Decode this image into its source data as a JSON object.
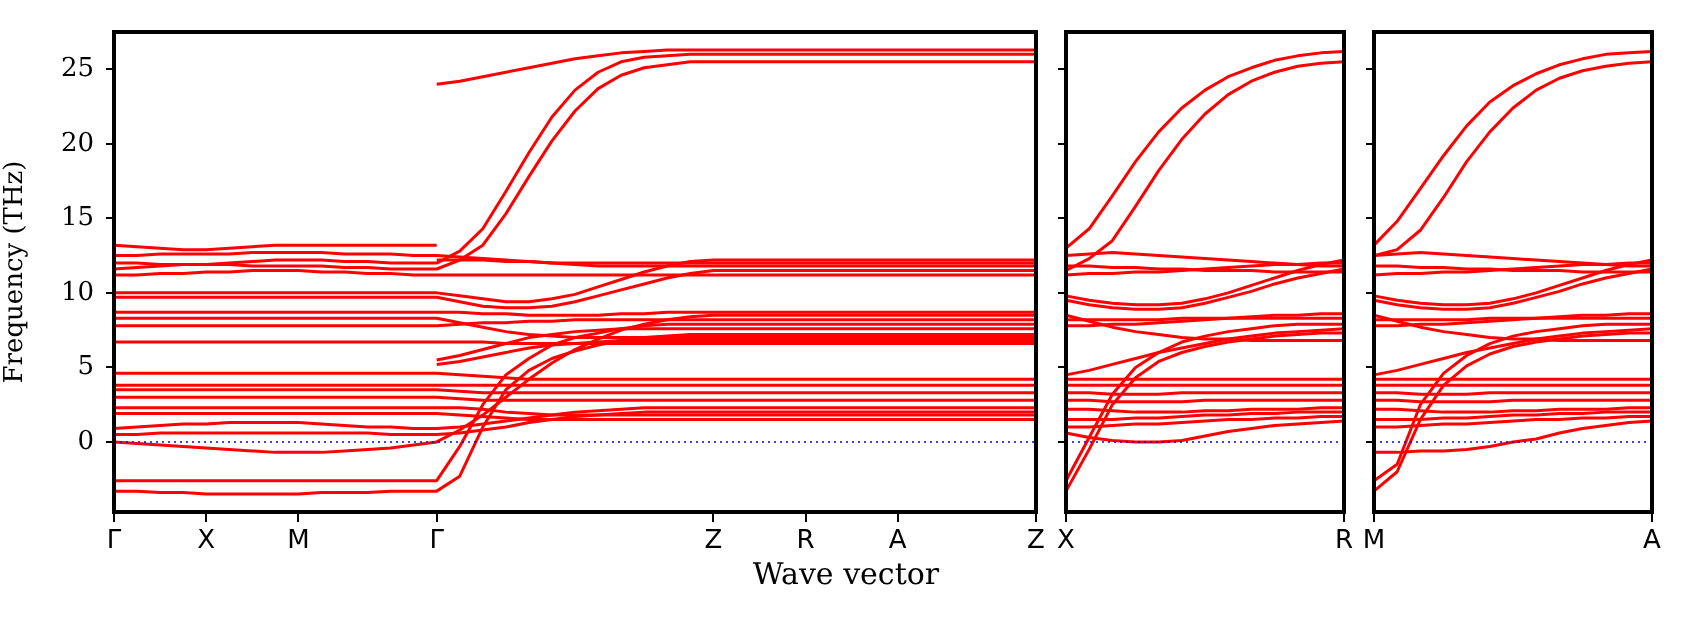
{
  "chart_data": [
    {
      "type": "line",
      "ylabel": "Frequency (THz)",
      "xlabel": "Wave vector",
      "marker": "none",
      "line_style": "solid",
      "grid": false,
      "legend": false,
      "categories": [
        "Γ",
        null,
        null,
        null,
        "X",
        null,
        null,
        null,
        "M",
        null,
        null,
        null,
        null,
        null,
        "Γ",
        null,
        null,
        null,
        null,
        null,
        null,
        null,
        null,
        null,
        null,
        null,
        "Z",
        null,
        null,
        null,
        "R",
        null,
        null,
        null,
        "A",
        null,
        null,
        null,
        null,
        null,
        "Z"
      ],
      "ylim": [
        -4.7,
        27.5
      ],
      "yticks": [
        0,
        5,
        10,
        15,
        20,
        25
      ],
      "ref_lines": [
        {
          "axis": "y",
          "value": 0,
          "color": "#0000ff",
          "line_style": "dotted"
        }
      ],
      "series": [
        {
          "color": "#ff0000",
          "values": [
            -3.3,
            -3.3,
            -3.4,
            -3.4,
            -3.5,
            -3.5,
            -3.5,
            -3.5,
            -3.5,
            -3.4,
            -3.4,
            -3.4,
            -3.3,
            -3.3,
            -3.3,
            -2.3,
            1,
            3.5,
            4.8,
            5.6,
            6.1,
            6.5,
            6.8,
            7.0,
            7.1,
            7.2,
            7.2,
            7.2,
            7.2,
            7.2,
            7.2,
            7.2,
            7.2,
            7.2,
            7.2,
            7.2,
            7.2,
            7.2,
            7.2,
            7.2,
            7.2
          ]
        },
        {
          "color": "#ff0000",
          "values": [
            -2.6,
            -2.6,
            -2.6,
            -2.6,
            -2.6,
            -2.6,
            -2.6,
            -2.6,
            -2.6,
            -2.6,
            -2.6,
            -2.6,
            -2.6,
            -2.6,
            -2.6,
            -0.3,
            2.5,
            4.5,
            5.6,
            6.5,
            7.0,
            7.3,
            7.6,
            7.8,
            7.9,
            7.9,
            7.9,
            7.9,
            7.9,
            7.9,
            7.9,
            7.9,
            7.9,
            7.9,
            7.9,
            7.9,
            7.9,
            7.9,
            7.9,
            7.9,
            7.9
          ]
        },
        {
          "color": "#ff0000",
          "values": [
            0,
            -0.1,
            -0.2,
            -0.3,
            -0.4,
            -0.5,
            -0.6,
            -0.7,
            -0.7,
            -0.7,
            -0.6,
            -0.5,
            -0.4,
            -0.2,
            0,
            0.8,
            1.8,
            3.0,
            4.2,
            5.3,
            6.2,
            6.9,
            7.5,
            7.9,
            8.2,
            8.4,
            8.5,
            8.5,
            8.5,
            8.5,
            8.5,
            8.5,
            8.5,
            8.5,
            8.5,
            8.5,
            8.5,
            8.5,
            8.5,
            8.5,
            8.5
          ]
        },
        {
          "color": "#ff0000",
          "values": [
            0.5,
            0.5,
            0.6,
            0.6,
            0.6,
            0.6,
            0.6,
            0.6,
            0.6,
            0.6,
            0.6,
            0.6,
            0.5,
            0.5,
            0.5,
            0.6,
            0.8,
            1.0,
            1.3,
            1.5,
            1.7,
            1.8,
            1.9,
            2.0,
            2.0,
            2.0,
            2.0,
            2.0,
            2.0,
            2.0,
            2.0,
            2.0,
            2.0,
            2.0,
            2.0,
            2.0,
            2.0,
            2.0,
            2.0,
            2.0,
            2.0
          ]
        },
        {
          "color": "#ff0000",
          "values": [
            0.9,
            1.0,
            1.1,
            1.2,
            1.2,
            1.3,
            1.3,
            1.3,
            1.3,
            1.2,
            1.1,
            1.0,
            1.0,
            0.9,
            0.9,
            1.0,
            1.2,
            1.4,
            1.6,
            1.8,
            2.0,
            2.1,
            2.2,
            2.3,
            2.3,
            2.3,
            2.3,
            2.3,
            2.3,
            2.3,
            2.3,
            2.3,
            2.3,
            2.3,
            2.3,
            2.3,
            2.3,
            2.3,
            2.3,
            2.3,
            2.3
          ]
        },
        {
          "color": "#ff0000",
          "values": [
            1.9,
            1.9,
            1.9,
            1.9,
            1.9,
            1.9,
            1.9,
            1.9,
            1.9,
            1.9,
            1.9,
            1.9,
            1.9,
            1.9,
            1.9,
            1.8,
            1.7,
            1.6,
            1.5,
            1.5,
            1.5,
            1.5,
            1.5,
            1.5,
            1.5,
            1.5,
            1.5,
            1.5,
            1.5,
            1.5,
            1.5,
            1.5,
            1.5,
            1.5,
            1.5,
            1.5,
            1.5,
            1.5,
            1.5,
            1.5,
            1.5
          ]
        },
        {
          "color": "#ff0000",
          "values": [
            2.3,
            2.3,
            2.3,
            2.3,
            2.3,
            2.3,
            2.3,
            2.3,
            2.3,
            2.3,
            2.3,
            2.3,
            2.3,
            2.3,
            2.3,
            2.3,
            2.2,
            2.0,
            1.9,
            1.8,
            1.8,
            1.8,
            1.8,
            1.8,
            1.8,
            1.8,
            1.8,
            1.8,
            1.8,
            1.8,
            1.8,
            1.8,
            1.8,
            1.8,
            1.8,
            1.8,
            1.8,
            1.8,
            1.8,
            1.8,
            1.8
          ]
        },
        {
          "color": "#ff0000",
          "values": [
            3.0,
            3.0,
            3.0,
            3.0,
            3.0,
            3.0,
            3.0,
            3.0,
            3.0,
            3.0,
            3.0,
            3.0,
            3.0,
            3.0,
            3.0,
            2.9,
            2.8,
            2.8,
            2.8,
            2.8,
            2.8,
            2.8,
            2.8,
            2.8,
            2.8,
            2.8,
            2.8,
            2.8,
            2.8,
            2.8,
            2.8,
            2.8,
            2.8,
            2.8,
            2.8,
            2.8,
            2.8,
            2.8,
            2.8,
            2.8,
            2.8
          ]
        },
        {
          "color": "#ff0000",
          "values": [
            3.5,
            3.5,
            3.5,
            3.5,
            3.5,
            3.5,
            3.5,
            3.5,
            3.5,
            3.5,
            3.5,
            3.5,
            3.5,
            3.5,
            3.5,
            3.4,
            3.3,
            3.3,
            3.3,
            3.3,
            3.3,
            3.3,
            3.3,
            3.3,
            3.3,
            3.3,
            3.3,
            3.3,
            3.3,
            3.3,
            3.3,
            3.3,
            3.3,
            3.3,
            3.3,
            3.3,
            3.3,
            3.3,
            3.3,
            3.3,
            3.3
          ]
        },
        {
          "color": "#ff0000",
          "values": [
            3.8,
            3.8,
            3.8,
            3.8,
            3.8,
            3.8,
            3.8,
            3.8,
            3.8,
            3.8,
            3.8,
            3.8,
            3.8,
            3.8,
            3.8,
            3.8,
            3.8,
            3.8,
            3.8,
            3.8,
            3.8,
            3.8,
            3.8,
            3.8,
            3.8,
            3.8,
            3.8,
            3.8,
            3.8,
            3.8,
            3.8,
            3.8,
            3.8,
            3.8,
            3.8,
            3.8,
            3.8,
            3.8,
            3.8,
            3.8,
            3.8
          ]
        },
        {
          "color": "#ff0000",
          "values": [
            4.6,
            4.6,
            4.6,
            4.6,
            4.6,
            4.6,
            4.6,
            4.6,
            4.6,
            4.6,
            4.6,
            4.6,
            4.6,
            4.6,
            4.6,
            4.5,
            4.4,
            4.3,
            4.2,
            4.2,
            4.2,
            4.2,
            4.2,
            4.2,
            4.2,
            4.2,
            4.2,
            4.2,
            4.2,
            4.2,
            4.2,
            4.2,
            4.2,
            4.2,
            4.2,
            4.2,
            4.2,
            4.2,
            4.2,
            4.2,
            4.2
          ]
        },
        {
          "color": "#ff0000",
          "values": [
            6.7,
            6.7,
            6.7,
            6.7,
            6.7,
            6.7,
            6.7,
            6.7,
            6.7,
            6.7,
            6.7,
            6.7,
            6.7,
            6.7,
            6.7,
            6.7,
            6.7,
            6.6,
            6.6,
            6.6,
            6.6,
            6.6,
            6.6,
            6.6,
            6.6,
            6.6,
            6.6,
            6.6,
            6.6,
            6.6,
            6.6,
            6.6,
            6.6,
            6.6,
            6.6,
            6.6,
            6.6,
            6.6,
            6.6,
            6.6,
            6.6
          ]
        },
        {
          "color": "#ff0000",
          "values": [
            7.8,
            7.8,
            7.8,
            7.8,
            7.8,
            7.8,
            7.8,
            7.8,
            7.8,
            7.8,
            7.8,
            7.8,
            7.8,
            7.8,
            7.8,
            7.9,
            8.0,
            8.0,
            8.1,
            8.1,
            8.2,
            8.2,
            8.2,
            8.2,
            8.2,
            8.2,
            8.2,
            8.2,
            8.2,
            8.2,
            8.2,
            8.2,
            8.2,
            8.2,
            8.2,
            8.2,
            8.2,
            8.2,
            8.2,
            8.2,
            8.2
          ]
        },
        {
          "color": "#ff0000",
          "values": [
            8.3,
            8.3,
            8.3,
            8.3,
            8.3,
            8.3,
            8.3,
            8.3,
            8.3,
            8.3,
            8.3,
            8.3,
            8.3,
            8.3,
            8.3,
            8.0,
            7.7,
            7.4,
            7.2,
            7.1,
            7.0,
            7.0,
            7.0,
            7.0,
            7.0,
            7.0,
            7.0,
            7.0,
            7.0,
            7.0,
            7.0,
            7.0,
            7.0,
            7.0,
            7.0,
            7.0,
            7.0,
            7.0,
            7.0,
            7.0,
            7.0
          ]
        },
        {
          "color": "#ff0000",
          "values": [
            8.7,
            8.7,
            8.7,
            8.7,
            8.7,
            8.7,
            8.7,
            8.7,
            8.7,
            8.7,
            8.7,
            8.7,
            8.7,
            8.7,
            8.7,
            8.7,
            8.6,
            8.6,
            8.5,
            8.5,
            8.5,
            8.5,
            8.6,
            8.6,
            8.7,
            8.7,
            8.7,
            8.7,
            8.7,
            8.7,
            8.7,
            8.7,
            8.7,
            8.7,
            8.7,
            8.7,
            8.7,
            8.7,
            8.7,
            8.7,
            8.7
          ]
        },
        {
          "color": "#ff0000",
          "values": [
            9.7,
            9.7,
            9.7,
            9.7,
            9.7,
            9.7,
            9.7,
            9.7,
            9.7,
            9.7,
            9.7,
            9.7,
            9.7,
            9.7,
            9.7,
            9.4,
            9.1,
            9.0,
            9.0,
            9.1,
            9.4,
            9.8,
            10.2,
            10.6,
            11.0,
            11.3,
            11.5,
            11.5,
            11.5,
            11.5,
            11.5,
            11.5,
            11.5,
            11.5,
            11.5,
            11.5,
            11.5,
            11.5,
            11.5,
            11.5,
            11.5
          ]
        },
        {
          "color": "#ff0000",
          "values": [
            10.0,
            10.0,
            10.0,
            10.0,
            10.0,
            10.0,
            10.0,
            10.0,
            10.0,
            10.0,
            10.0,
            10.0,
            10.0,
            10.0,
            10.0,
            9.8,
            9.6,
            9.4,
            9.4,
            9.6,
            9.9,
            10.4,
            10.9,
            11.4,
            11.8,
            12.1,
            12.2,
            12.2,
            12.2,
            12.2,
            12.2,
            12.2,
            12.2,
            12.2,
            12.2,
            12.2,
            12.2,
            12.2,
            12.2,
            12.2,
            12.2
          ]
        },
        {
          "color": "#ff0000",
          "values": [
            11.2,
            11.2,
            11.3,
            11.3,
            11.4,
            11.4,
            11.5,
            11.5,
            11.5,
            11.4,
            11.4,
            11.3,
            11.3,
            11.2,
            11.2,
            11.2,
            11.2,
            11.2,
            11.2,
            11.2,
            11.2,
            11.2,
            11.2,
            11.2,
            11.2,
            11.2,
            11.2,
            11.2,
            11.2,
            11.2,
            11.2,
            11.2,
            11.2,
            11.2,
            11.2,
            11.2,
            11.2,
            11.2,
            11.2,
            11.2,
            11.2
          ]
        },
        {
          "color": "#ff0000",
          "values": [
            11.6,
            11.7,
            11.8,
            11.9,
            11.9,
            11.9,
            11.8,
            11.8,
            11.8,
            11.8,
            11.7,
            11.7,
            11.6,
            11.6,
            11.6,
            12.2,
            13.2,
            15.3,
            17.8,
            20.2,
            22.2,
            23.7,
            24.6,
            25.1,
            25.3,
            25.5,
            25.5,
            25.5,
            25.5,
            25.5,
            25.5,
            25.5,
            25.5,
            25.5,
            25.5,
            25.5,
            25.5,
            25.5,
            25.5,
            25.5,
            25.5
          ]
        },
        {
          "color": "#ff0000",
          "values": [
            12.0,
            12.0,
            11.9,
            11.9,
            11.9,
            12.0,
            12.1,
            12.2,
            12.2,
            12.2,
            12.1,
            12.1,
            12.0,
            12.0,
            12.0,
            12.8,
            14.3,
            16.8,
            19.4,
            21.8,
            23.6,
            24.8,
            25.5,
            25.8,
            25.9,
            26.0,
            26.0,
            26.0,
            26.0,
            26.0,
            26.0,
            26.0,
            26.0,
            26.0,
            26.0,
            26.0,
            26.0,
            26.0,
            26.0,
            26.0,
            26.0
          ]
        },
        {
          "color": "#ff0000",
          "values": [
            12.5,
            12.5,
            12.6,
            12.6,
            12.6,
            12.6,
            12.7,
            12.7,
            12.7,
            12.7,
            12.6,
            12.6,
            12.6,
            12.5,
            12.5,
            12.4,
            12.3,
            12.2,
            12.1,
            12.0,
            11.9,
            11.8,
            11.8,
            11.8,
            11.8,
            11.8,
            11.8,
            11.8,
            11.8,
            11.8,
            11.8,
            11.8,
            11.8,
            11.8,
            11.8,
            11.8,
            11.8,
            11.8,
            11.8,
            11.8,
            11.8
          ]
        },
        {
          "color": "#ff0000",
          "values": [
            13.2,
            13.1,
            13.0,
            12.9,
            12.9,
            13.0,
            13.1,
            13.2,
            13.2,
            13.2,
            13.2,
            13.2,
            13.2,
            13.2,
            13.2,
            null,
            null,
            null,
            null,
            null,
            null,
            null,
            null,
            null,
            null,
            null,
            null,
            null,
            null,
            null,
            null,
            null,
            null,
            null,
            null,
            null,
            null,
            null,
            null,
            null,
            null
          ]
        },
        {
          "color": "#ff0000",
          "values": [
            null,
            null,
            null,
            null,
            null,
            null,
            null,
            null,
            null,
            null,
            null,
            null,
            null,
            null,
            24,
            24.2,
            24.5,
            24.8,
            25.1,
            25.4,
            25.7,
            25.9,
            26.1,
            26.2,
            26.3,
            26.3,
            26.3,
            26.3,
            26.3,
            26.3,
            26.3,
            26.3,
            26.3,
            26.3,
            26.3,
            26.3,
            26.3,
            26.3,
            26.3,
            26.3,
            26.3
          ]
        },
        {
          "color": "#ff0000",
          "values": [
            null,
            null,
            null,
            null,
            null,
            null,
            null,
            null,
            null,
            null,
            null,
            null,
            null,
            null,
            5.2,
            5.4,
            5.7,
            6.0,
            6.3,
            6.5,
            6.6,
            6.7,
            6.8,
            6.8,
            6.8,
            6.8,
            6.8,
            6.8,
            6.8,
            6.8,
            6.8,
            6.8,
            6.8,
            6.8,
            6.8,
            6.8,
            6.8,
            6.8,
            6.8,
            6.8,
            6.8
          ]
        },
        {
          "color": "#ff0000",
          "values": [
            null,
            null,
            null,
            null,
            null,
            null,
            null,
            null,
            null,
            null,
            null,
            null,
            null,
            null,
            5.5,
            5.8,
            6.2,
            6.6,
            7.0,
            7.2,
            7.4,
            7.5,
            7.6,
            7.6,
            7.6,
            7.6,
            7.6,
            7.6,
            7.6,
            7.6,
            7.6,
            7.6,
            7.6,
            7.6,
            7.6,
            7.6,
            7.6,
            7.6,
            7.6,
            7.6,
            7.6
          ]
        },
        {
          "color": "#ff0000",
          "values": [
            null,
            null,
            null,
            null,
            null,
            null,
            null,
            null,
            null,
            null,
            null,
            null,
            null,
            null,
            12.2,
            12.2,
            12.2,
            12.1,
            12.1,
            12.0,
            12.0,
            12.0,
            12.0,
            12.0,
            12.0,
            12.0,
            12.0,
            12.0,
            12.0,
            12.0,
            12.0,
            12.0,
            12.0,
            12.0,
            12.0,
            12.0,
            12.0,
            12.0,
            12.0,
            12.0,
            12.0
          ]
        }
      ]
    },
    {
      "type": "line",
      "marker": "none",
      "line_style": "solid",
      "grid": false,
      "legend": false,
      "tick_labels": "x",
      "categories": [
        "X",
        null,
        null,
        null,
        null,
        null,
        null,
        null,
        null,
        null,
        null,
        null,
        "R"
      ],
      "ylim": [
        -4.7,
        27.5
      ],
      "yticks": [
        {
          "value": 0,
          "label": null
        },
        {
          "value": 5,
          "label": null
        },
        {
          "value": 10,
          "label": null
        },
        {
          "value": 15,
          "label": null
        },
        {
          "value": 20,
          "label": null
        },
        {
          "value": 25,
          "label": null
        }
      ],
      "ref_lines": [
        {
          "axis": "y",
          "value": 0,
          "color": "#0000ff",
          "line_style": "dotted"
        }
      ],
      "series": [
        {
          "color": "#ff0000",
          "values": [
            13.0,
            14.3,
            16.5,
            18.8,
            20.8,
            22.4,
            23.6,
            24.5,
            25.1,
            25.6,
            25.9,
            26.1,
            26.2
          ]
        },
        {
          "color": "#ff0000",
          "values": [
            11.5,
            12.3,
            13.5,
            15.8,
            18.2,
            20.3,
            22.0,
            23.3,
            24.2,
            24.8,
            25.2,
            25.4,
            25.5
          ]
        },
        {
          "color": "#ff0000",
          "values": [
            -3.3,
            -0.5,
            2.5,
            4.3,
            5.4,
            6.0,
            6.4,
            6.7,
            6.9,
            7.1,
            7.2,
            7.3,
            7.3
          ]
        },
        {
          "color": "#ff0000",
          "values": [
            -2.6,
            0.3,
            3.2,
            5.0,
            6.0,
            6.7,
            7.1,
            7.4,
            7.6,
            7.8,
            7.9,
            7.9,
            7.9
          ]
        },
        {
          "color": "#ff0000",
          "values": [
            0.6,
            0.3,
            0.1,
            0,
            0,
            0.1,
            0.4,
            0.7,
            0.9,
            1.1,
            1.2,
            1.3,
            1.4
          ]
        },
        {
          "color": "#ff0000",
          "values": [
            12.5,
            12.6,
            12.7,
            12.6,
            12.5,
            12.4,
            12.3,
            12.2,
            12.1,
            12.0,
            11.9,
            11.8,
            11.8
          ]
        },
        {
          "color": "#ff0000",
          "values": [
            11.8,
            11.8,
            11.7,
            11.7,
            11.6,
            11.6,
            11.5,
            11.5,
            11.5,
            11.4,
            11.4,
            11.4,
            11.4
          ]
        },
        {
          "color": "#ff0000",
          "values": [
            11.2,
            11.3,
            11.3,
            11.4,
            11.4,
            11.5,
            11.6,
            11.7,
            11.8,
            11.9,
            11.9,
            12.0,
            12.0
          ]
        },
        {
          "color": "#ff0000",
          "values": [
            9.8,
            9.5,
            9.3,
            9.2,
            9.2,
            9.3,
            9.6,
            10.0,
            10.5,
            11.0,
            11.5,
            11.9,
            12.2
          ]
        },
        {
          "color": "#ff0000",
          "values": [
            9.5,
            9.2,
            9.0,
            8.9,
            8.9,
            9.0,
            9.3,
            9.7,
            10.1,
            10.6,
            11.0,
            11.3,
            11.6
          ]
        },
        {
          "color": "#ff0000",
          "values": [
            8.5,
            8.1,
            7.7,
            7.4,
            7.2,
            7.0,
            6.9,
            6.9,
            6.8,
            6.8,
            6.8,
            6.8,
            6.8
          ]
        },
        {
          "color": "#ff0000",
          "values": [
            8.2,
            8.2,
            8.2,
            8.2,
            8.2,
            8.3,
            8.3,
            8.3,
            8.3,
            8.3,
            8.3,
            8.3,
            8.3
          ]
        },
        {
          "color": "#ff0000",
          "values": [
            4.5,
            4.8,
            5.2,
            5.6,
            6.0,
            6.3,
            6.6,
            6.9,
            7.1,
            7.3,
            7.4,
            7.5,
            7.6
          ]
        },
        {
          "color": "#ff0000",
          "values": [
            7.8,
            7.8,
            7.9,
            7.9,
            8.0,
            8.1,
            8.2,
            8.3,
            8.4,
            8.5,
            8.5,
            8.6,
            8.6
          ]
        },
        {
          "color": "#ff0000",
          "values": [
            4.2,
            4.2,
            4.2,
            4.2,
            4.2,
            4.2,
            4.2,
            4.2,
            4.2,
            4.2,
            4.2,
            4.2,
            4.2
          ]
        },
        {
          "color": "#ff0000",
          "values": [
            3.8,
            3.8,
            3.8,
            3.8,
            3.8,
            3.8,
            3.8,
            3.8,
            3.8,
            3.8,
            3.8,
            3.8,
            3.8
          ]
        },
        {
          "color": "#ff0000",
          "values": [
            3.3,
            3.3,
            3.2,
            3.2,
            3.2,
            3.3,
            3.3,
            3.3,
            3.3,
            3.3,
            3.3,
            3.3,
            3.3
          ]
        },
        {
          "color": "#ff0000",
          "values": [
            2.8,
            2.8,
            2.7,
            2.7,
            2.7,
            2.7,
            2.8,
            2.8,
            2.8,
            2.8,
            2.8,
            2.8,
            2.8
          ]
        },
        {
          "color": "#ff0000",
          "values": [
            2.2,
            2.2,
            2.1,
            2.0,
            2.0,
            2.0,
            2.1,
            2.1,
            2.2,
            2.2,
            2.2,
            2.3,
            2.3
          ]
        },
        {
          "color": "#ff0000",
          "values": [
            1.5,
            1.5,
            1.5,
            1.6,
            1.6,
            1.7,
            1.8,
            1.8,
            1.9,
            1.9,
            2.0,
            2.0,
            2.0
          ]
        },
        {
          "color": "#ff0000",
          "values": [
            1.0,
            1.0,
            1.1,
            1.2,
            1.2,
            1.3,
            1.4,
            1.5,
            1.5,
            1.6,
            1.6,
            1.7,
            1.7
          ]
        }
      ]
    },
    {
      "type": "line",
      "marker": "none",
      "line_style": "solid",
      "grid": false,
      "legend": false,
      "tick_labels": "x",
      "categories": [
        "M",
        null,
        null,
        null,
        null,
        null,
        null,
        null,
        null,
        null,
        null,
        null,
        "A"
      ],
      "ylim": [
        -4.7,
        27.5
      ],
      "yticks": [
        {
          "value": 0,
          "label": null
        },
        {
          "value": 5,
          "label": null
        },
        {
          "value": 10,
          "label": null
        },
        {
          "value": 15,
          "label": null
        },
        {
          "value": 20,
          "label": null
        },
        {
          "value": 25,
          "label": null
        }
      ],
      "ref_lines": [
        {
          "axis": "y",
          "value": 0,
          "color": "#0000ff",
          "line_style": "dotted"
        }
      ],
      "series": [
        {
          "color": "#ff0000",
          "values": [
            13.2,
            14.8,
            17.0,
            19.2,
            21.2,
            22.8,
            23.9,
            24.7,
            25.3,
            25.7,
            26.0,
            26.1,
            26.2
          ]
        },
        {
          "color": "#ff0000",
          "values": [
            12.5,
            12.9,
            14.2,
            16.4,
            18.8,
            20.8,
            22.4,
            23.6,
            24.4,
            24.9,
            25.2,
            25.4,
            25.5
          ]
        },
        {
          "color": "#ff0000",
          "values": [
            -3.3,
            -2.0,
            1.5,
            3.8,
            5.1,
            5.9,
            6.4,
            6.7,
            6.9,
            7.1,
            7.2,
            7.3,
            7.3
          ]
        },
        {
          "color": "#ff0000",
          "values": [
            -2.6,
            -1.5,
            2.5,
            4.6,
            5.8,
            6.6,
            7.1,
            7.4,
            7.6,
            7.8,
            7.9,
            7.9,
            7.9
          ]
        },
        {
          "color": "#ff0000",
          "values": [
            -0.7,
            -0.7,
            -0.6,
            -0.6,
            -0.5,
            -0.3,
            0,
            0.2,
            0.6,
            0.9,
            1.1,
            1.3,
            1.4
          ]
        },
        {
          "color": "#ff0000",
          "values": [
            12.5,
            12.6,
            12.7,
            12.6,
            12.5,
            12.4,
            12.3,
            12.2,
            12.1,
            12.0,
            11.9,
            11.8,
            11.8
          ]
        },
        {
          "color": "#ff0000",
          "values": [
            11.8,
            11.8,
            11.7,
            11.7,
            11.6,
            11.6,
            11.5,
            11.5,
            11.5,
            11.4,
            11.4,
            11.4,
            11.4
          ]
        },
        {
          "color": "#ff0000",
          "values": [
            11.2,
            11.3,
            11.3,
            11.4,
            11.4,
            11.5,
            11.6,
            11.7,
            11.8,
            11.9,
            11.9,
            12.0,
            12.0
          ]
        },
        {
          "color": "#ff0000",
          "values": [
            9.8,
            9.5,
            9.3,
            9.2,
            9.2,
            9.3,
            9.6,
            10.0,
            10.5,
            11.0,
            11.5,
            11.9,
            12.2
          ]
        },
        {
          "color": "#ff0000",
          "values": [
            9.5,
            9.2,
            9.0,
            8.9,
            8.9,
            9.0,
            9.3,
            9.7,
            10.1,
            10.6,
            11.0,
            11.3,
            11.6
          ]
        },
        {
          "color": "#ff0000",
          "values": [
            8.5,
            8.1,
            7.7,
            7.4,
            7.2,
            7.0,
            6.9,
            6.9,
            6.8,
            6.8,
            6.8,
            6.8,
            6.8
          ]
        },
        {
          "color": "#ff0000",
          "values": [
            8.2,
            8.2,
            8.2,
            8.2,
            8.2,
            8.3,
            8.3,
            8.3,
            8.3,
            8.3,
            8.3,
            8.3,
            8.3
          ]
        },
        {
          "color": "#ff0000",
          "values": [
            4.5,
            4.8,
            5.2,
            5.6,
            6.0,
            6.3,
            6.6,
            6.9,
            7.1,
            7.3,
            7.4,
            7.5,
            7.6
          ]
        },
        {
          "color": "#ff0000",
          "values": [
            7.8,
            7.8,
            7.9,
            7.9,
            8.0,
            8.1,
            8.2,
            8.3,
            8.4,
            8.5,
            8.5,
            8.6,
            8.6
          ]
        },
        {
          "color": "#ff0000",
          "values": [
            4.2,
            4.2,
            4.2,
            4.2,
            4.2,
            4.2,
            4.2,
            4.2,
            4.2,
            4.2,
            4.2,
            4.2,
            4.2
          ]
        },
        {
          "color": "#ff0000",
          "values": [
            3.8,
            3.8,
            3.8,
            3.8,
            3.8,
            3.8,
            3.8,
            3.8,
            3.8,
            3.8,
            3.8,
            3.8,
            3.8
          ]
        },
        {
          "color": "#ff0000",
          "values": [
            3.3,
            3.3,
            3.2,
            3.2,
            3.2,
            3.3,
            3.3,
            3.3,
            3.3,
            3.3,
            3.3,
            3.3,
            3.3
          ]
        },
        {
          "color": "#ff0000",
          "values": [
            2.8,
            2.8,
            2.7,
            2.7,
            2.7,
            2.7,
            2.8,
            2.8,
            2.8,
            2.8,
            2.8,
            2.8,
            2.8
          ]
        },
        {
          "color": "#ff0000",
          "values": [
            2.2,
            2.2,
            2.1,
            2.0,
            2.0,
            2.0,
            2.1,
            2.1,
            2.2,
            2.2,
            2.2,
            2.3,
            2.3
          ]
        },
        {
          "color": "#ff0000",
          "values": [
            1.5,
            1.5,
            1.5,
            1.6,
            1.6,
            1.7,
            1.8,
            1.8,
            1.9,
            1.9,
            2.0,
            2.0,
            2.0
          ]
        },
        {
          "color": "#ff0000",
          "values": [
            1.0,
            1.0,
            1.1,
            1.2,
            1.2,
            1.3,
            1.4,
            1.5,
            1.5,
            1.6,
            1.6,
            1.7,
            1.7
          ]
        }
      ]
    }
  ]
}
